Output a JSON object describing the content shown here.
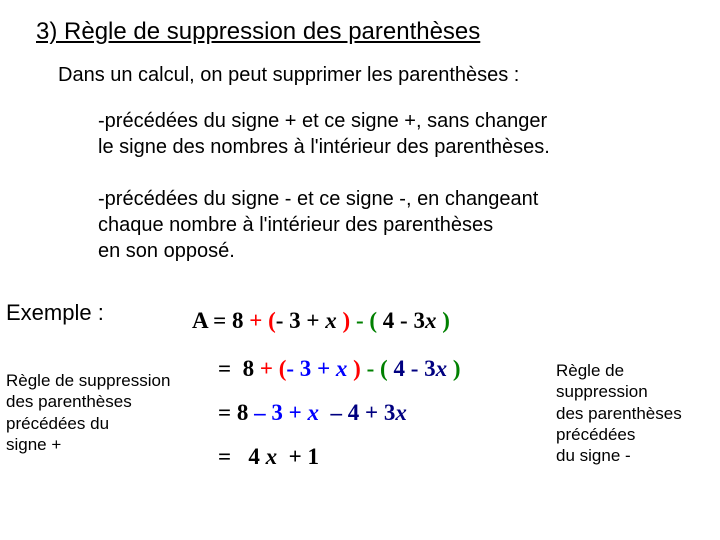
{
  "title": "3) Règle de suppression des parenthèses",
  "intro": "Dans un calcul, on peut supprimer les parenthèses :",
  "rule1a": "-précédées du signe + et ce signe +, sans changer",
  "rule1b": "le signe des nombres à l'intérieur des parenthèses.",
  "rule2a": "-précédées du signe - et ce signe -, en changeant",
  "rule2b": "chaque nombre à l'intérieur des parenthèses",
  "rule2c": "en son opposé.",
  "exampleLabel": "Exemple :",
  "captionLeft": {
    "l1": "Règle de suppression",
    "l2": "des parenthèses",
    "l3": "précédées du",
    "l4": "signe +"
  },
  "captionRight": {
    "l1": "Règle de suppression",
    "l2": "des parenthèses",
    "l3": "précédées",
    "l4": "du signe -"
  },
  "colors": {
    "red": "#ff0000",
    "green": "#008000",
    "blue": "#0000ff",
    "navy": "#000080",
    "black": "#000000"
  },
  "eq": {
    "A": "A",
    "eq": "=",
    "n8": "8",
    "plus": "+",
    "lpar": "(",
    "neg3": "- 3",
    "x": "x",
    "rpar": ")",
    "minus": "-",
    "n4": "4",
    "n3": "3",
    "dash": "–",
    "pn3": "+ 3",
    "n1": "1",
    "n4x": "4"
  }
}
